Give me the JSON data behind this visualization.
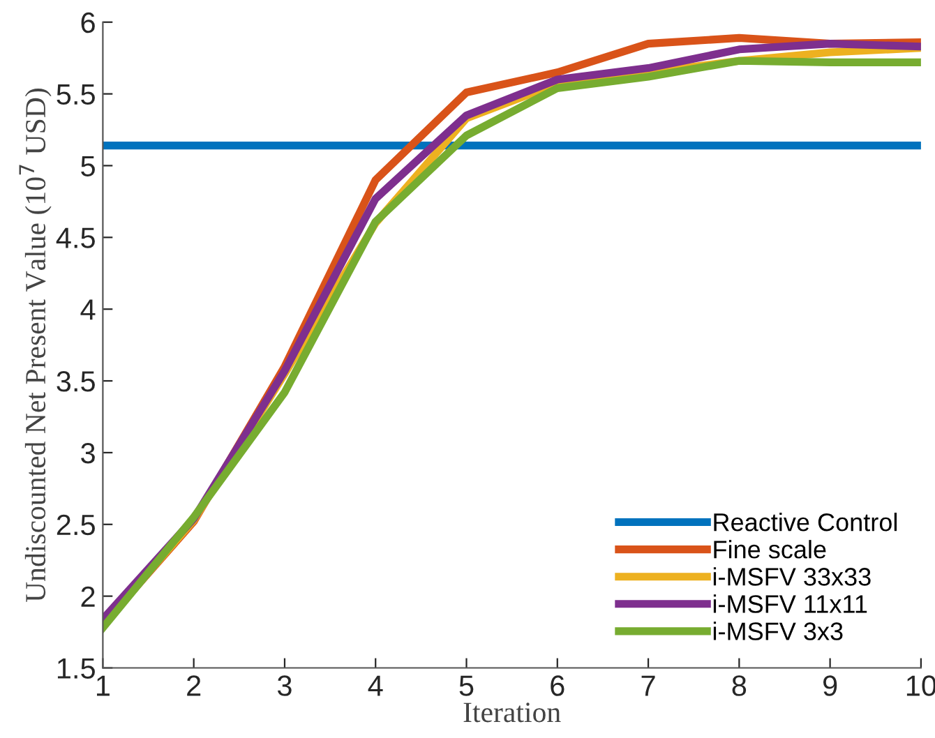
{
  "chart_data": {
    "type": "line",
    "xlabel": "Iteration",
    "ylabel": "Undiscounted Net Present Value (10$^{7}$ USD)",
    "x": [
      1,
      2,
      3,
      4,
      5,
      6,
      7,
      8,
      9,
      10
    ],
    "series": [
      {
        "name": "Reactive Control",
        "color": "#0072bd",
        "values": [
          5.14,
          5.14,
          5.14,
          5.14,
          5.14,
          5.14,
          5.14,
          5.14,
          5.14,
          5.14
        ]
      },
      {
        "name": "Fine scale",
        "color": "#d95319",
        "values": [
          1.8,
          2.52,
          3.6,
          4.9,
          5.51,
          5.65,
          5.85,
          5.89,
          5.85,
          5.86
        ]
      },
      {
        "name": "i-MSFV 33x33",
        "color": "#edb120",
        "values": [
          1.8,
          2.53,
          3.55,
          4.6,
          5.33,
          5.57,
          5.65,
          5.73,
          5.79,
          5.82
        ]
      },
      {
        "name": "i-MSFV 11x11",
        "color": "#7e2f8e",
        "values": [
          1.84,
          2.54,
          3.57,
          4.77,
          5.35,
          5.6,
          5.68,
          5.81,
          5.85,
          5.83
        ]
      },
      {
        "name": "i-MSFV 3x3",
        "color": "#77ac30",
        "values": [
          1.78,
          2.55,
          3.42,
          4.61,
          5.21,
          5.54,
          5.62,
          5.73,
          5.72,
          5.72
        ]
      }
    ],
    "xlim": [
      1,
      10
    ],
    "xticks": [
      1,
      2,
      3,
      4,
      5,
      6,
      7,
      8,
      9,
      10
    ],
    "ylim": [
      1.5,
      6
    ],
    "yticks": [
      1.5,
      2,
      2.5,
      3,
      3.5,
      4,
      4.5,
      5,
      5.5,
      6
    ],
    "grid": false,
    "legend": "bottom right",
    "marker": "none",
    "line_style": "solid"
  }
}
